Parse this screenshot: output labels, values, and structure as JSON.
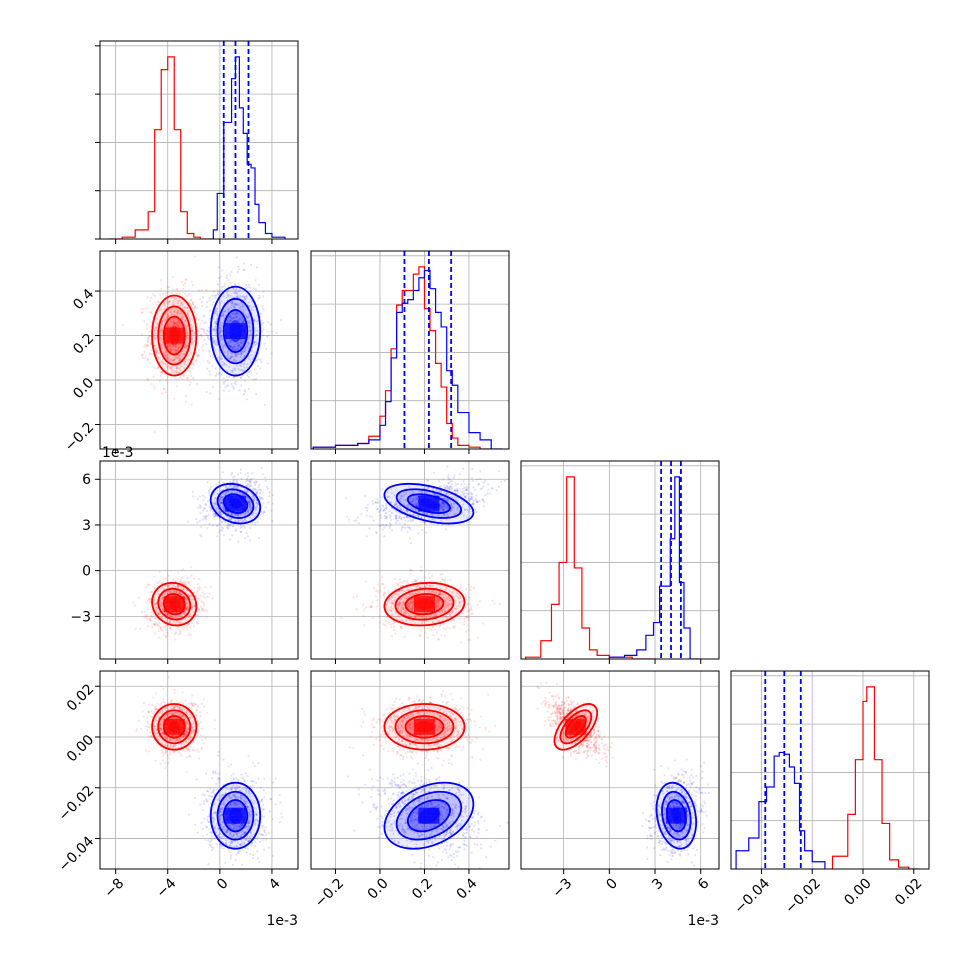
{
  "colors": {
    "red": "#ff0000",
    "blue": "#0000ff",
    "grid": "#b0b0b0"
  },
  "chart_data": {
    "type": "corner",
    "grid": true,
    "parameters": [
      {
        "id": "p0",
        "range": [
          -9.2,
          6.0
        ],
        "ticks": [
          -8,
          -4,
          0,
          4
        ],
        "tick_labels": [
          "−8",
          "−4",
          "0",
          "4"
        ],
        "offset_label": "1e-3"
      },
      {
        "id": "p1",
        "range": [
          -0.31,
          0.58
        ],
        "ticks": [
          -0.2,
          0.0,
          0.2,
          0.4
        ],
        "tick_labels": [
          "−0.2",
          "0.0",
          "0.2",
          "0.4"
        ],
        "offset_label": ""
      },
      {
        "id": "p2",
        "range": [
          -5.8,
          7.2
        ],
        "ticks": [
          -3,
          0,
          3,
          6
        ],
        "tick_labels": [
          "−3",
          "0",
          "3",
          "6"
        ],
        "offset_label": "1e-3"
      },
      {
        "id": "p3",
        "range": [
          -0.052,
          0.026
        ],
        "ticks": [
          -0.04,
          -0.02,
          0.0,
          0.02
        ],
        "tick_labels": [
          "−0.04",
          "−0.02",
          "0.00",
          "0.02"
        ],
        "offset_label": ""
      }
    ],
    "series": [
      {
        "color": "red",
        "mean": [
          -3.5,
          0.2,
          -2.2,
          0.004
        ],
        "std": [
          0.85,
          0.09,
          0.7,
          0.0045
        ],
        "corr": [
          [
            1,
            0,
            0.1,
            0
          ],
          [
            0,
            1,
            -0.1,
            0
          ],
          [
            0.1,
            -0.1,
            1,
            -0.6
          ],
          [
            0,
            0,
            -0.6,
            1
          ]
        ],
        "histograms": [
          {
            "edges": [
              -8.5,
              -7.5,
              -6.5,
              -5.5,
              -5.0,
              -4.5,
              -4.0,
              -3.5,
              -3.0,
              -2.5,
              -2.0,
              -1.5,
              -1.0,
              -0.5
            ],
            "counts": [
              0,
              0.01,
              0.05,
              0.15,
              0.6,
              0.93,
              1.0,
              0.6,
              0.15,
              0.03,
              0.01,
              0,
              0
            ]
          },
          {
            "edges": [
              -0.3,
              -0.2,
              -0.1,
              -0.05,
              0.0,
              0.025,
              0.05,
              0.075,
              0.1,
              0.125,
              0.15,
              0.175,
              0.2,
              0.225,
              0.25,
              0.275,
              0.3,
              0.325,
              0.35,
              0.4,
              0.45,
              0.5
            ],
            "counts": [
              0.01,
              0.02,
              0.03,
              0.07,
              0.18,
              0.32,
              0.55,
              0.79,
              0.87,
              0.87,
              0.96,
              1.0,
              0.77,
              0.65,
              0.47,
              0.34,
              0.14,
              0.06,
              0.02,
              0.01,
              0
            ]
          },
          {
            "edges": [
              -5.5,
              -4.5,
              -3.8,
              -3.3,
              -2.8,
              -2.3,
              -1.8,
              -1.3,
              -0.8,
              0.0,
              1.5,
              3.0
            ],
            "counts": [
              0.01,
              0.1,
              0.3,
              0.53,
              1.0,
              0.5,
              0.17,
              0.05,
              0.02,
              0.01,
              0
            ]
          },
          {
            "edges": [
              -0.012,
              -0.006,
              -0.003,
              0.0,
              0.0015,
              0.0045,
              0.0075,
              0.0105,
              0.014,
              0.018,
              0.022
            ],
            "counts": [
              0.07,
              0.3,
              0.6,
              0.92,
              1.0,
              0.6,
              0.25,
              0.05,
              0.01,
              0
            ]
          }
        ]
      },
      {
        "color": "blue",
        "mean": [
          1.2,
          0.22,
          4.4,
          -0.031
        ],
        "std": [
          0.95,
          0.1,
          0.65,
          0.0065
        ],
        "corr": [
          [
            1,
            0,
            0.2,
            0
          ],
          [
            0,
            1,
            0.45,
            -0.35
          ],
          [
            0.2,
            0.45,
            1,
            0.2
          ],
          [
            0,
            -0.35,
            0.2,
            1
          ]
        ],
        "histograms": [
          {
            "edges": [
              -0.5,
              -0.2,
              0.0,
              0.3,
              0.6,
              0.9,
              1.2,
              1.5,
              1.8,
              2.1,
              2.4,
              2.7,
              3.0,
              3.5,
              4.0,
              5.0
            ],
            "counts": [
              0.05,
              0.25,
              0.25,
              0.64,
              0.64,
              0.88,
              1.0,
              0.72,
              0.58,
              0.41,
              0.39,
              0.19,
              0.09,
              0.03,
              0.01
            ]
          },
          {
            "edges": [
              -0.3,
              -0.2,
              -0.1,
              -0.05,
              0.0,
              0.025,
              0.05,
              0.075,
              0.1,
              0.125,
              0.15,
              0.175,
              0.2,
              0.225,
              0.25,
              0.275,
              0.3,
              0.325,
              0.35,
              0.4,
              0.45,
              0.5,
              0.55
            ],
            "counts": [
              0.01,
              0.02,
              0.03,
              0.05,
              0.13,
              0.26,
              0.5,
              0.75,
              0.8,
              0.82,
              0.87,
              0.94,
              0.98,
              0.88,
              0.75,
              0.67,
              0.43,
              0.35,
              0.2,
              0.09,
              0.05,
              0
            ]
          },
          {
            "edges": [
              0.0,
              1.0,
              1.8,
              2.4,
              2.9,
              3.3,
              3.7,
              4.0,
              4.3,
              4.6,
              4.9,
              5.3,
              6.0
            ],
            "counts": [
              0.01,
              0.02,
              0.05,
              0.13,
              0.2,
              0.4,
              0.4,
              0.66,
              1.0,
              0.42,
              0.17,
              0
            ]
          },
          {
            "edges": [
              -0.05,
              -0.045,
              -0.041,
              -0.038,
              -0.035,
              -0.033,
              -0.031,
              -0.029,
              -0.027,
              -0.025,
              -0.023,
              -0.02,
              -0.015
            ],
            "counts": [
              0.1,
              0.17,
              0.37,
              0.45,
              0.62,
              0.64,
              0.63,
              0.56,
              0.47,
              0.21,
              0.1,
              0.04
            ]
          }
        ],
        "quantiles": [
          [
            0.3,
            1.2,
            2.2
          ],
          [
            0.11,
            0.22,
            0.32
          ],
          [
            3.4,
            4.05,
            4.7
          ],
          [
            -0.0385,
            -0.031,
            -0.0245
          ]
        ]
      }
    ]
  }
}
